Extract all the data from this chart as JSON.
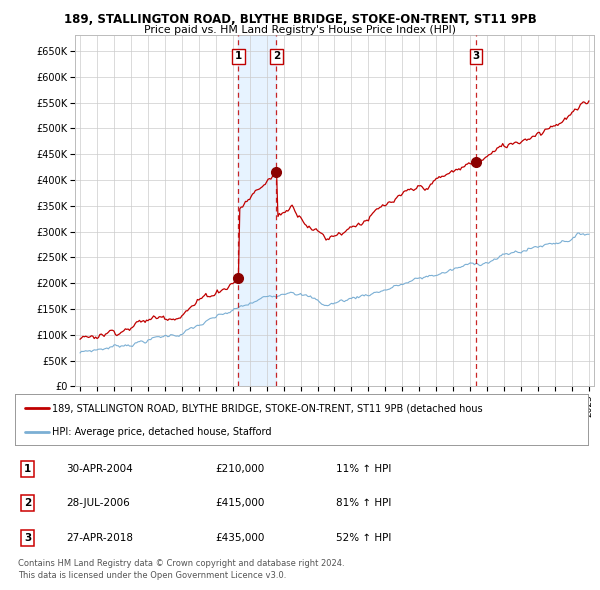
{
  "title1": "189, STALLINGTON ROAD, BLYTHE BRIDGE, STOKE-ON-TRENT, ST11 9PB",
  "title2": "Price paid vs. HM Land Registry's House Price Index (HPI)",
  "xlim_start": 1994.7,
  "xlim_end": 2025.3,
  "ylim_bottom": 0,
  "ylim_top": 680000,
  "yticks": [
    0,
    50000,
    100000,
    150000,
    200000,
    250000,
    300000,
    350000,
    400000,
    450000,
    500000,
    550000,
    600000,
    650000
  ],
  "ytick_labels": [
    "£0",
    "£50K",
    "£100K",
    "£150K",
    "£200K",
    "£250K",
    "£300K",
    "£350K",
    "£400K",
    "£450K",
    "£500K",
    "£550K",
    "£600K",
    "£650K"
  ],
  "xticks": [
    1995,
    1996,
    1997,
    1998,
    1999,
    2000,
    2001,
    2002,
    2003,
    2004,
    2005,
    2006,
    2007,
    2008,
    2009,
    2010,
    2011,
    2012,
    2013,
    2014,
    2015,
    2016,
    2017,
    2018,
    2019,
    2020,
    2021,
    2022,
    2023,
    2024,
    2025
  ],
  "sale_dates": [
    2004.33,
    2006.58,
    2018.33
  ],
  "sale_prices": [
    210000,
    415000,
    435000
  ],
  "sale_labels": [
    "1",
    "2",
    "3"
  ],
  "hpi_line_color": "#7bafd4",
  "price_line_color": "#c00000",
  "sale_marker_color": "#8b0000",
  "vline_color": "#c00000",
  "shade_color": "#ddeeff",
  "legend_label1": "189, STALLINGTON ROAD, BLYTHE BRIDGE, STOKE-ON-TRENT, ST11 9PB (detached hous",
  "legend_label2": "HPI: Average price, detached house, Stafford",
  "table_rows": [
    {
      "num": "1",
      "date": "30-APR-2004",
      "price": "£210,000",
      "pct": "11% ↑ HPI"
    },
    {
      "num": "2",
      "date": "28-JUL-2006",
      "price": "£415,000",
      "pct": "81% ↑ HPI"
    },
    {
      "num": "3",
      "date": "27-APR-2018",
      "price": "£435,000",
      "pct": "52% ↑ HPI"
    }
  ],
  "footnote1": "Contains HM Land Registry data © Crown copyright and database right 2024.",
  "footnote2": "This data is licensed under the Open Government Licence v3.0.",
  "bg_color": "#ffffff",
  "plot_bg_color": "#ffffff",
  "grid_color": "#cccccc"
}
